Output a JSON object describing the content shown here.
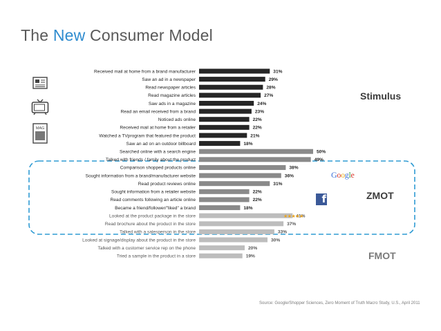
{
  "slide": {
    "title_prefix": "The",
    "title_accent": "New",
    "title_suffix": "Consumer Model",
    "source": "Source: Google/Shopper Sciences, Zero Moment of Truth Macro Study, U.S., April 2011"
  },
  "groups": {
    "stimulus": "Stimulus",
    "zmot": "ZMOT",
    "fmot": "FMOT"
  },
  "logos": {
    "google": "Google",
    "facebook": "f",
    "stars": "★★★★★",
    "magazine_icon_text": "MAG"
  },
  "colors": {
    "stimulus": "#262626",
    "zmot": "#8a8a8a",
    "fmot": "#bdbdbd",
    "dashed_border": "#2f9bd3",
    "title_accent": "#2f8ccf"
  },
  "chart_data": {
    "type": "bar",
    "orientation": "horizontal",
    "unit": "%",
    "categories": [
      "Received mail at home from a brand manufacturer",
      "Saw an ad in a newspaper",
      "Read newspaper articles",
      "Read magazine articles",
      "Saw ads in a magazine",
      "Read an email received from a brand",
      "Noticed ads online",
      "Received mail at home from a retailer",
      "Watched a TVprogram that featured the product",
      "Saw an ad on an outdoor billboard",
      "Searched online with a search engine",
      "Talked with friends / family about the product",
      "Comparison shopped products online",
      "Sought information from a brand/manufacturer website",
      "Read product reviews online",
      "Sought information from a retailer website",
      "Read comments following an article online",
      "Became a friend/follower/\"liked\" a brand",
      "Looked at the product package in the store",
      "Read brochure about the product in the store",
      "Talked with a salesperson in the store",
      "Looked at signage/display about the product in the store",
      "Talked with a customer service rep on the phone",
      "Tried a sample in the product in a store"
    ],
    "values": [
      31,
      29,
      28,
      27,
      24,
      23,
      22,
      22,
      21,
      18,
      50,
      49,
      38,
      36,
      31,
      22,
      22,
      18,
      41,
      37,
      33,
      30,
      20,
      19
    ],
    "value_labels": [
      "31%",
      "29%",
      "28%",
      "27%",
      "24%",
      "23%",
      "22%",
      "22%",
      "21%",
      "18%",
      "50%",
      "49%",
      "38%",
      "36%",
      "31%",
      "22%",
      "22%",
      "18%",
      "41%",
      "37%",
      "33%",
      "30%",
      "20%",
      "19%"
    ],
    "group_of_bar": [
      "stimulus",
      "stimulus",
      "stimulus",
      "stimulus",
      "stimulus",
      "stimulus",
      "stimulus",
      "stimulus",
      "stimulus",
      "stimulus",
      "zmot",
      "zmot",
      "zmot",
      "zmot",
      "zmot",
      "zmot",
      "zmot",
      "zmot",
      "fmot",
      "fmot",
      "fmot",
      "fmot",
      "fmot",
      "fmot"
    ],
    "xlim": [
      0,
      50
    ],
    "grid": false,
    "legend": "none"
  }
}
